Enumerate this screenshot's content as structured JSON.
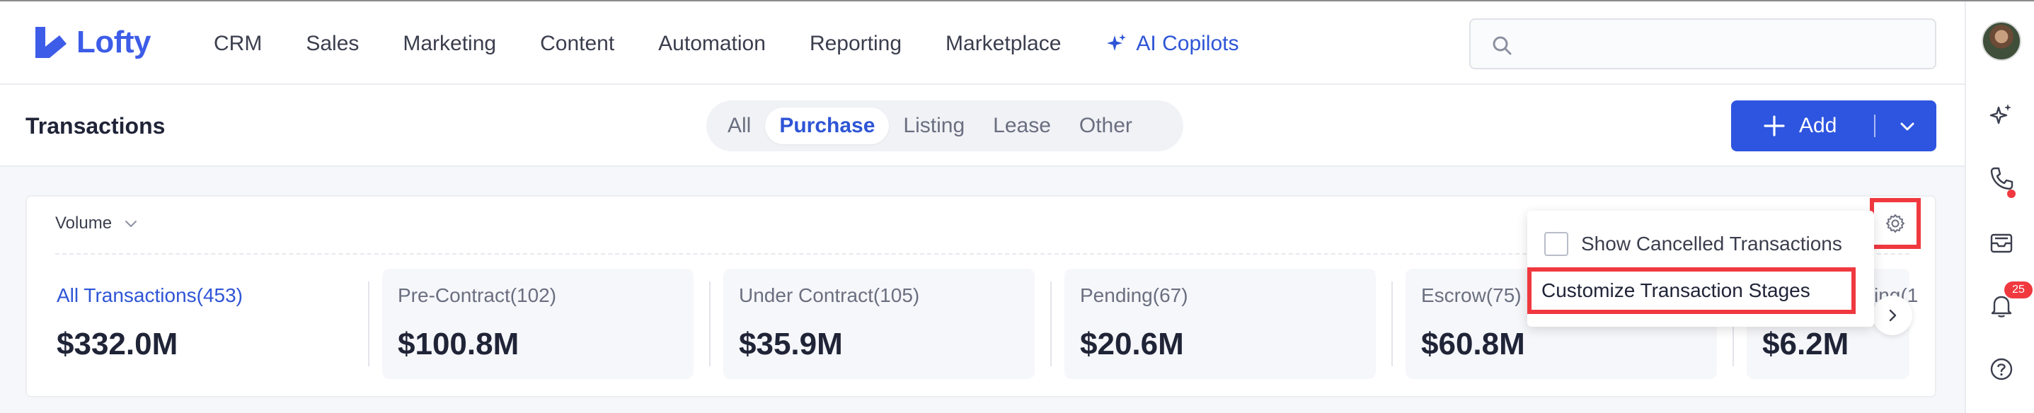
{
  "app": {
    "logo_text": "Lofty",
    "brand_color": "#3d5ce8"
  },
  "nav": {
    "items": [
      "CRM",
      "Sales",
      "Marketing",
      "Content",
      "Automation",
      "Reporting",
      "Marketplace"
    ],
    "ai_copilots": "AI Copilots"
  },
  "search": {
    "placeholder": ""
  },
  "rail": {
    "icons": [
      "avatar",
      "sparkle-icon",
      "phone-icon",
      "inbox-icon",
      "bell-icon",
      "help-icon"
    ],
    "notification_count": "25"
  },
  "page": {
    "title": "Transactions",
    "tabs": [
      "All",
      "Purchase",
      "Listing",
      "Lease",
      "Other"
    ],
    "active_tab": "Purchase",
    "add_button": "Add"
  },
  "summary": {
    "metric_selector": "Volume",
    "stats": [
      {
        "label": "All Transactions(453)",
        "value": "$332.0M"
      },
      {
        "label": "Pre-Contract(102)",
        "value": "$100.8M"
      },
      {
        "label": "Under Contract(105)",
        "value": "$35.9M"
      },
      {
        "label": "Pending(67)",
        "value": "$20.6M"
      },
      {
        "label": "Escrow(75)",
        "value": "$60.8M"
      },
      {
        "label": "ing(1",
        "value": "$6.2M"
      }
    ]
  },
  "settings_menu": {
    "show_cancelled": "Show Cancelled Transactions",
    "show_cancelled_checked": false,
    "customize_stages": "Customize Transaction Stages"
  },
  "colors": {
    "accent": "#2e55e0",
    "highlight": "#f0383f"
  }
}
